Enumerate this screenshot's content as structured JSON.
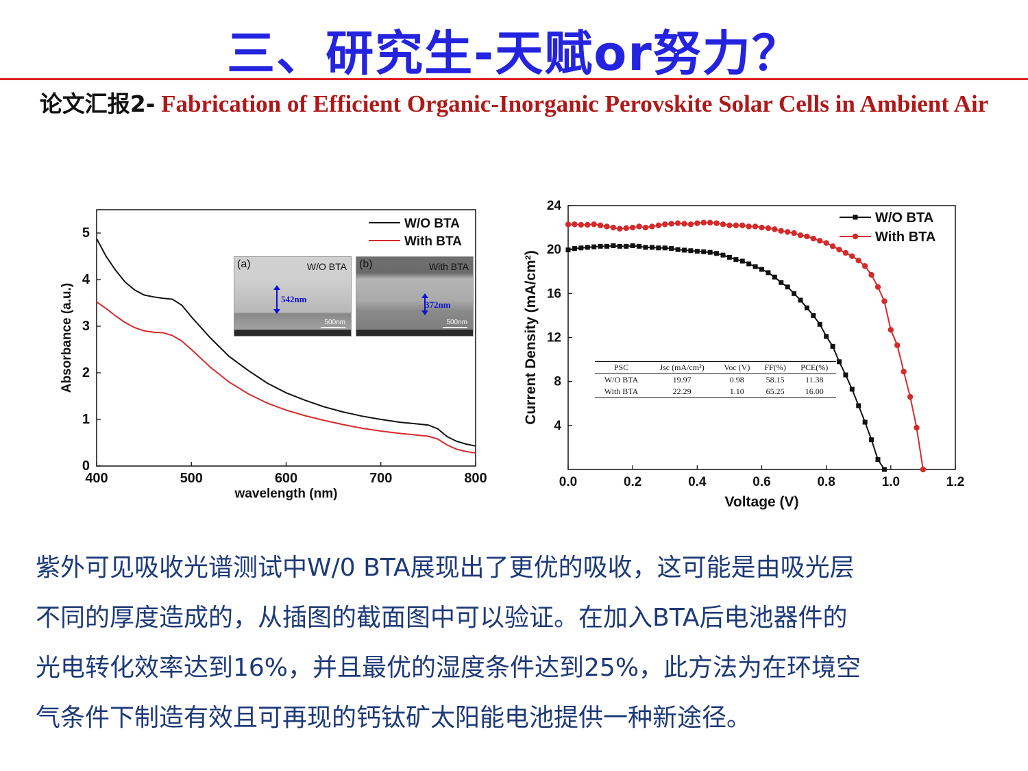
{
  "slide": {
    "title": "三、研究生-天赋or努力？",
    "subtitle_zh": "论文汇报2-",
    "subtitle_en": " Fabrication of Efficient Organic-Inorganic Perovskite Solar Cells in Ambient Air",
    "body_lines": [
      "紫外可见吸收光谱测试中W/0 BTA展现出了更优的吸收，这可能是由吸光层",
      "不同的厚度造成的，从插图的截面图中可以验证。在加入BTA后电池器件的",
      "光电转化效率达到16%，并且最优的湿度条件达到25%，此方法为在环境空",
      "气条件下制造有效且可再现的钙钛矿太阳能电池提供一种新途径。"
    ],
    "colors": {
      "title": "#2323e0",
      "rule": "#e02020",
      "subtitle_en": "#b01818",
      "body": "#1d3a78"
    }
  },
  "insets": [
    {
      "label": "(a)",
      "title": "W/O BTA",
      "measure": "542nm",
      "scale": "500nm"
    },
    {
      "label": "(b)",
      "title": "With BTA",
      "measure": "372nm",
      "scale": "500nm"
    }
  ],
  "chart_data": [
    {
      "type": "line",
      "xlabel": "wavelength (nm)",
      "ylabel": "Absorbance (a.u.)",
      "xlim": [
        400,
        800
      ],
      "ylim": [
        0,
        5.5
      ],
      "xticks": [
        400,
        500,
        600,
        700,
        800
      ],
      "yticks": [
        0,
        1,
        2,
        3,
        4,
        5
      ],
      "legend_position": "top-right",
      "series": [
        {
          "name": "W/O BTA",
          "color": "#111111",
          "x": [
            400,
            410,
            420,
            430,
            440,
            450,
            460,
            470,
            480,
            490,
            500,
            520,
            540,
            560,
            580,
            600,
            620,
            640,
            660,
            680,
            700,
            720,
            740,
            750,
            760,
            770,
            780,
            790,
            800
          ],
          "y": [
            4.88,
            4.5,
            4.2,
            3.95,
            3.78,
            3.67,
            3.63,
            3.6,
            3.58,
            3.45,
            3.2,
            2.75,
            2.35,
            2.05,
            1.78,
            1.57,
            1.41,
            1.27,
            1.16,
            1.07,
            1.0,
            0.94,
            0.9,
            0.88,
            0.8,
            0.63,
            0.53,
            0.47,
            0.43
          ]
        },
        {
          "name": "With BTA",
          "color": "#d42a2a",
          "x": [
            400,
            410,
            420,
            430,
            440,
            450,
            460,
            470,
            480,
            490,
            500,
            520,
            540,
            560,
            580,
            600,
            620,
            640,
            660,
            680,
            700,
            720,
            740,
            750,
            760,
            770,
            780,
            790,
            800
          ],
          "y": [
            3.52,
            3.38,
            3.22,
            3.08,
            2.97,
            2.9,
            2.87,
            2.86,
            2.8,
            2.68,
            2.5,
            2.12,
            1.8,
            1.55,
            1.35,
            1.2,
            1.08,
            0.98,
            0.89,
            0.81,
            0.75,
            0.7,
            0.66,
            0.64,
            0.58,
            0.45,
            0.36,
            0.31,
            0.28
          ]
        }
      ]
    },
    {
      "type": "line",
      "xlabel": "Voltage (V)",
      "ylabel": "Current Density (mA/cm²)",
      "xlim": [
        0.0,
        1.2
      ],
      "ylim": [
        0,
        24
      ],
      "xticks": [
        "0.0",
        "0.2",
        "0.4",
        "0.6",
        "0.8",
        "1.0",
        "1.2"
      ],
      "yticks": [
        4,
        8,
        12,
        16,
        20,
        24
      ],
      "legend_position": "top-right",
      "series": [
        {
          "name": "W/O BTA",
          "color": "#111111",
          "marker": "square",
          "x": [
            0.0,
            0.02,
            0.04,
            0.06,
            0.08,
            0.1,
            0.12,
            0.14,
            0.16,
            0.18,
            0.2,
            0.22,
            0.24,
            0.26,
            0.28,
            0.3,
            0.32,
            0.34,
            0.36,
            0.38,
            0.4,
            0.42,
            0.44,
            0.46,
            0.48,
            0.5,
            0.52,
            0.54,
            0.56,
            0.58,
            0.6,
            0.62,
            0.64,
            0.66,
            0.68,
            0.7,
            0.72,
            0.74,
            0.76,
            0.78,
            0.8,
            0.82,
            0.84,
            0.86,
            0.88,
            0.9,
            0.92,
            0.94,
            0.96,
            0.98
          ],
          "y": [
            19.97,
            20.1,
            20.15,
            20.2,
            20.25,
            20.3,
            20.3,
            20.35,
            20.3,
            20.3,
            20.35,
            20.3,
            20.2,
            20.2,
            20.15,
            20.15,
            20.1,
            20.0,
            19.95,
            19.9,
            19.85,
            19.8,
            19.75,
            19.65,
            19.5,
            19.3,
            19.1,
            18.95,
            18.7,
            18.45,
            18.2,
            17.9,
            17.5,
            17.0,
            16.6,
            16.0,
            15.4,
            14.7,
            14.0,
            13.2,
            12.1,
            11.2,
            9.8,
            8.6,
            7.3,
            5.8,
            4.3,
            2.7,
            0.9,
            0.0
          ]
        },
        {
          "name": "With BTA",
          "color": "#d42a2a",
          "marker": "circle",
          "x": [
            0.0,
            0.02,
            0.04,
            0.06,
            0.08,
            0.1,
            0.12,
            0.14,
            0.16,
            0.18,
            0.2,
            0.22,
            0.24,
            0.26,
            0.28,
            0.3,
            0.32,
            0.34,
            0.36,
            0.38,
            0.4,
            0.42,
            0.44,
            0.46,
            0.48,
            0.5,
            0.52,
            0.54,
            0.56,
            0.58,
            0.6,
            0.62,
            0.64,
            0.66,
            0.68,
            0.7,
            0.72,
            0.74,
            0.76,
            0.78,
            0.8,
            0.82,
            0.84,
            0.86,
            0.88,
            0.9,
            0.92,
            0.94,
            0.96,
            0.98,
            1.0,
            1.02,
            1.04,
            1.06,
            1.08,
            1.1
          ],
          "y": [
            22.29,
            22.3,
            22.25,
            22.25,
            22.3,
            22.2,
            22.1,
            22.0,
            21.9,
            21.95,
            22.0,
            22.1,
            22.0,
            22.1,
            22.2,
            22.3,
            22.35,
            22.4,
            22.35,
            22.3,
            22.4,
            22.45,
            22.45,
            22.4,
            22.3,
            22.2,
            22.2,
            22.2,
            22.1,
            22.1,
            22.0,
            21.95,
            21.85,
            21.7,
            21.6,
            21.5,
            21.3,
            21.2,
            21.0,
            20.8,
            20.6,
            20.3,
            20.0,
            19.7,
            19.4,
            19.0,
            18.5,
            17.7,
            16.6,
            15.3,
            12.7,
            11.3,
            8.9,
            6.6,
            3.8,
            0.0
          ]
        }
      ],
      "table": {
        "headers": [
          "PSC",
          "Jsc (mA/cm²)",
          "Voc (V)",
          "FF(%)",
          "PCE(%)"
        ],
        "rows": [
          [
            "W/O BTA",
            "19.97",
            "0.98",
            "58.15",
            "11.38"
          ],
          [
            "With BTA",
            "22.29",
            "1.10",
            "65.25",
            "16.00"
          ]
        ]
      }
    }
  ]
}
